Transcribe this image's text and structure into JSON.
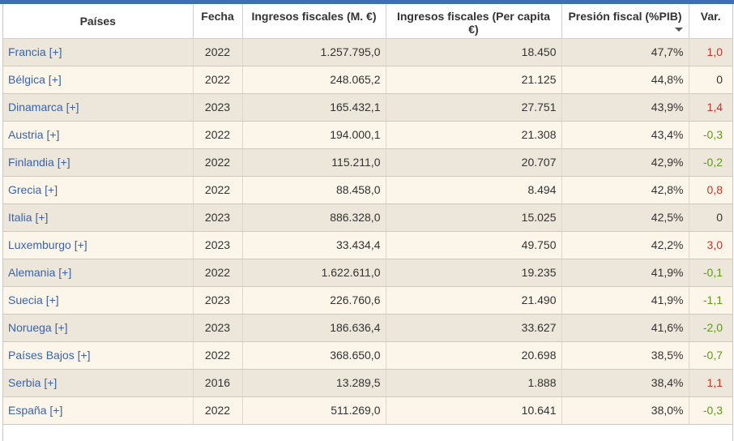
{
  "header": {
    "country": "Países",
    "date": "Fecha",
    "revenue_m": "Ingresos fiscales (M. €)",
    "revenue_pc": "Ingresos fiscales (Per capita €)",
    "pressure": "Presión fiscal (%PIB)",
    "var": "Var."
  },
  "colors": {
    "accent": "#3e6fb3",
    "link": "#3a63a8",
    "row_odd": "#ede6da",
    "row_even": "#fcf5ea",
    "var_negative": "#5d9a1a",
    "var_positive": "#c0392b"
  },
  "rows": [
    {
      "country": "Francia [+]",
      "date": "2022",
      "revenue_m": "1.257.795,0",
      "revenue_pc": "18.450",
      "pressure": "47,7%",
      "var": "1,0",
      "trend": "pos"
    },
    {
      "country": "Bélgica [+]",
      "date": "2022",
      "revenue_m": "248.065,2",
      "revenue_pc": "21.125",
      "pressure": "44,8%",
      "var": "0",
      "trend": "neutral"
    },
    {
      "country": "Dinamarca [+]",
      "date": "2023",
      "revenue_m": "165.432,1",
      "revenue_pc": "27.751",
      "pressure": "43,9%",
      "var": "1,4",
      "trend": "pos"
    },
    {
      "country": "Austria [+]",
      "date": "2022",
      "revenue_m": "194.000,1",
      "revenue_pc": "21.308",
      "pressure": "43,4%",
      "var": "-0,3",
      "trend": "neg"
    },
    {
      "country": "Finlandia [+]",
      "date": "2022",
      "revenue_m": "115.211,0",
      "revenue_pc": "20.707",
      "pressure": "42,9%",
      "var": "-0,2",
      "trend": "neg"
    },
    {
      "country": "Grecia [+]",
      "date": "2022",
      "revenue_m": "88.458,0",
      "revenue_pc": "8.494",
      "pressure": "42,8%",
      "var": "0,8",
      "trend": "pos"
    },
    {
      "country": "Italia [+]",
      "date": "2023",
      "revenue_m": "886.328,0",
      "revenue_pc": "15.025",
      "pressure": "42,5%",
      "var": "0",
      "trend": "neutral"
    },
    {
      "country": "Luxemburgo [+]",
      "date": "2023",
      "revenue_m": "33.434,4",
      "revenue_pc": "49.750",
      "pressure": "42,2%",
      "var": "3,0",
      "trend": "pos"
    },
    {
      "country": "Alemania [+]",
      "date": "2022",
      "revenue_m": "1.622.611,0",
      "revenue_pc": "19.235",
      "pressure": "41,9%",
      "var": "-0,1",
      "trend": "neg"
    },
    {
      "country": "Suecia [+]",
      "date": "2023",
      "revenue_m": "226.760,6",
      "revenue_pc": "21.490",
      "pressure": "41,9%",
      "var": "-1,1",
      "trend": "neg"
    },
    {
      "country": "Noruega [+]",
      "date": "2023",
      "revenue_m": "186.636,4",
      "revenue_pc": "33.627",
      "pressure": "41,6%",
      "var": "-2,0",
      "trend": "neg"
    },
    {
      "country": "Países Bajos [+]",
      "date": "2022",
      "revenue_m": "368.650,0",
      "revenue_pc": "20.698",
      "pressure": "38,5%",
      "var": "-0,7",
      "trend": "neg"
    },
    {
      "country": "Serbia [+]",
      "date": "2016",
      "revenue_m": "13.289,5",
      "revenue_pc": "1.888",
      "pressure": "38,4%",
      "var": "1,1",
      "trend": "pos"
    },
    {
      "country": "España [+]",
      "date": "2022",
      "revenue_m": "511.269,0",
      "revenue_pc": "10.641",
      "pressure": "38,0%",
      "var": "-0,3",
      "trend": "neg"
    }
  ]
}
